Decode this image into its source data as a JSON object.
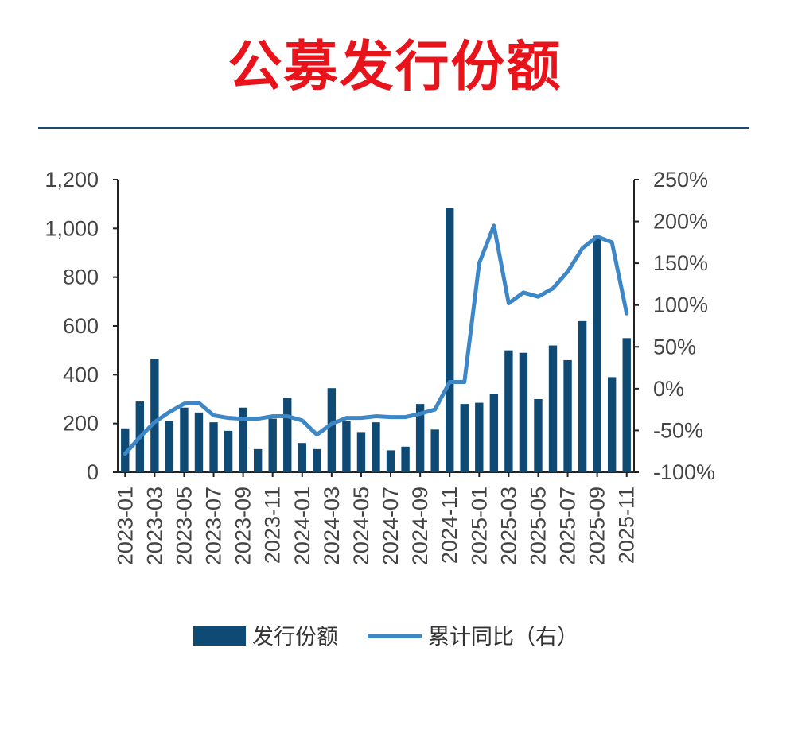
{
  "title": "公募发行份额",
  "chart_data": {
    "type": "bar",
    "categories": [
      "2023-01",
      "2023-02",
      "2023-03",
      "2023-04",
      "2023-05",
      "2023-06",
      "2023-07",
      "2023-08",
      "2023-09",
      "2023-10",
      "2023-11",
      "2023-12",
      "2024-01",
      "2024-02",
      "2024-03",
      "2024-04",
      "2024-05",
      "2024-06",
      "2024-07",
      "2024-08",
      "2024-09",
      "2024-10",
      "2024-11",
      "2024-12",
      "2025-01",
      "2025-02",
      "2025-03",
      "2025-04",
      "2025-05",
      "2025-06",
      "2025-07",
      "2025-08",
      "2025-09",
      "2025-10",
      "2025-11"
    ],
    "x_tick_labels": [
      "2023-01",
      "2023-03",
      "2023-05",
      "2023-07",
      "2023-09",
      "2023-11",
      "2024-01",
      "2024-03",
      "2024-05",
      "2024-07",
      "2024-09",
      "2024-11",
      "2025-01",
      "2025-03",
      "2025-05",
      "2025-07",
      "2025-09",
      "2025-11"
    ],
    "series": [
      {
        "name": "发行份额",
        "axis": "left",
        "type": "bar",
        "color": "#0e4a73",
        "values": [
          180,
          290,
          465,
          210,
          265,
          245,
          205,
          170,
          265,
          95,
          220,
          305,
          120,
          95,
          345,
          210,
          165,
          205,
          90,
          105,
          280,
          175,
          1085,
          280,
          285,
          320,
          500,
          490,
          300,
          520,
          460,
          620,
          970,
          390,
          550
        ]
      },
      {
        "name": "累计同比（右）",
        "axis": "right",
        "type": "line",
        "color": "#3d87c7",
        "values": [
          -78,
          -58,
          -40,
          -28,
          -18,
          -17,
          -32,
          -35,
          -36,
          -36,
          -33,
          -33,
          -38,
          -55,
          -42,
          -35,
          -35,
          -33,
          -34,
          -34,
          -30,
          -25,
          8,
          8,
          150,
          195,
          102,
          115,
          110,
          120,
          140,
          168,
          182,
          175,
          90
        ]
      }
    ],
    "y_left": {
      "min": 0,
      "max": 1200,
      "ticks": [
        "0",
        "200",
        "400",
        "600",
        "800",
        "1,000",
        "1,200"
      ]
    },
    "y_right": {
      "min": -100,
      "max": 250,
      "ticks": [
        "-100%",
        "-50%",
        "0%",
        "50%",
        "100%",
        "150%",
        "200%",
        "250%"
      ]
    },
    "legend": [
      {
        "label": "发行份额",
        "kind": "bar",
        "color": "#0e4a73"
      },
      {
        "label": "累计同比（右）",
        "kind": "line",
        "color": "#3d87c7"
      }
    ],
    "legend_position": "bottom",
    "grid": false
  }
}
